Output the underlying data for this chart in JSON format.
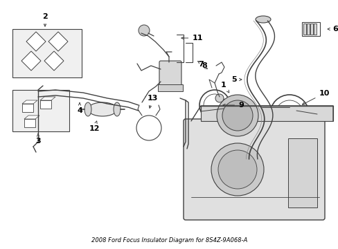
{
  "title": "2008 Ford Focus Insulator Diagram for 8S4Z-9A068-A",
  "bg": "#ffffff",
  "lc": "#404040",
  "tc": "#000000",
  "fig_w": 4.89,
  "fig_h": 3.6,
  "dpi": 100
}
